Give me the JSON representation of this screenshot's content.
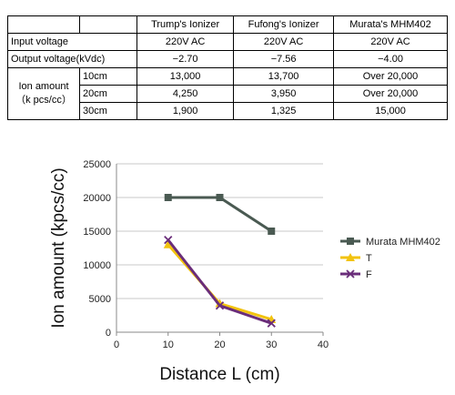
{
  "table": {
    "headers": [
      "",
      "",
      "Trump's Ionizer",
      "Fufong's Ionizer",
      "Murata's MHM402"
    ],
    "input_voltage": {
      "label": "Input voltage",
      "values": [
        "220V AC",
        "220V AC",
        "220V AC"
      ]
    },
    "output_voltage": {
      "label": "Output voltage(kVdc)",
      "values": [
        "−2.70",
        "−7.56",
        "−4.00"
      ]
    },
    "ion_amount": {
      "label_line1": "Ion amount",
      "label_line2": "（k pcs/cc）",
      "rows": [
        {
          "distance": "10cm",
          "values": [
            "13,000",
            "13,700",
            "Over 20,000"
          ]
        },
        {
          "distance": "20cm",
          "values": [
            "4,250",
            "3,950",
            "Over 20,000"
          ]
        },
        {
          "distance": "30cm",
          "values": [
            "1,900",
            "1,325",
            "15,000"
          ]
        }
      ]
    }
  },
  "chart_data": {
    "type": "line",
    "xlabel": "Distance L (cm)",
    "ylabel": "Ion amount (kpcs/cc)",
    "xlim": [
      0,
      40
    ],
    "ylim": [
      0,
      25000
    ],
    "xticks": [
      0,
      10,
      20,
      30,
      40
    ],
    "yticks": [
      0,
      5000,
      10000,
      15000,
      20000,
      25000
    ],
    "grid": "horizontal",
    "legend_position": "right",
    "series": [
      {
        "name": "Murata MHM402",
        "x": [
          10,
          20,
          30
        ],
        "y": [
          20000,
          20000,
          15000
        ],
        "color": "#4a5a52",
        "marker": "square"
      },
      {
        "name": "T",
        "x": [
          10,
          20,
          30
        ],
        "y": [
          13000,
          4250,
          1900
        ],
        "color": "#f2c30f",
        "marker": "triangle"
      },
      {
        "name": "F",
        "x": [
          10,
          20,
          30
        ],
        "y": [
          13700,
          3950,
          1325
        ],
        "color": "#6a2d7a",
        "marker": "x"
      }
    ]
  }
}
